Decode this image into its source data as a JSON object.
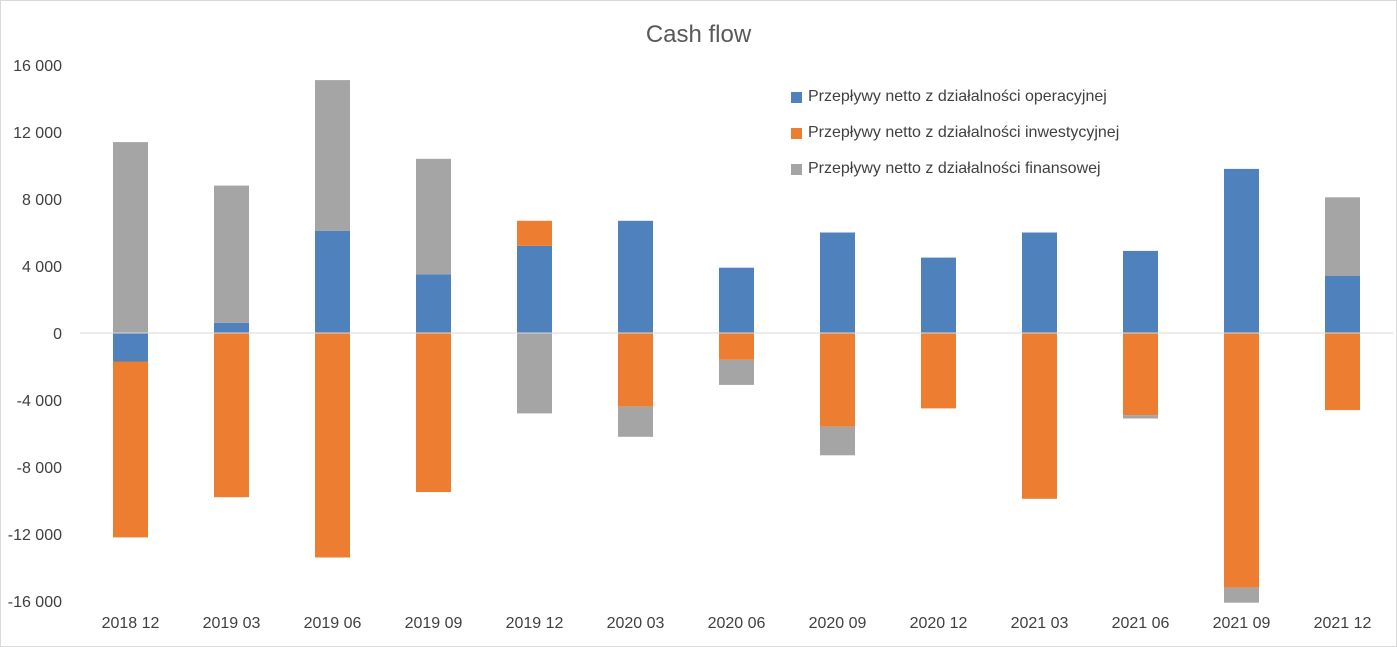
{
  "chart_data": {
    "type": "bar",
    "stacked": true,
    "title": "Cash flow",
    "xlabel": "",
    "ylabel": "",
    "ylim": [
      -16000,
      16000
    ],
    "yticks": [
      16000,
      12000,
      8000,
      4000,
      0,
      -4000,
      -8000,
      -12000,
      -16000
    ],
    "ytick_labels": [
      "16 000",
      "12 000",
      "8 000",
      "4 000",
      "0",
      "-4 000",
      "-8 000",
      "-12 000",
      "-16 000"
    ],
    "categories": [
      "2018 12",
      "2019 03",
      "2019 06",
      "2019 09",
      "2019 12",
      "2020 03",
      "2020 06",
      "2020 09",
      "2020 12",
      "2021 03",
      "2021 06",
      "2021 09",
      "2021 12"
    ],
    "series": [
      {
        "name": "Przepływy netto z działalności operacyjnej",
        "color": "#4f81bd",
        "values": [
          -1700,
          600,
          6100,
          3500,
          5200,
          6700,
          3900,
          6000,
          4500,
          6000,
          4900,
          9800,
          3400
        ]
      },
      {
        "name": "Przepływy netto z działalności inwestycyjnej",
        "color": "#ed7d31",
        "values": [
          -10500,
          -9800,
          -13400,
          -9500,
          1500,
          -4400,
          -1600,
          -5600,
          -4500,
          -9900,
          -4900,
          -15200,
          -4600
        ]
      },
      {
        "name": "Przepływy netto z działalności finansowej",
        "color": "#a5a5a5",
        "values": [
          11400,
          8200,
          9000,
          6900,
          -4800,
          -1800,
          -1500,
          -1700,
          0,
          0,
          -200,
          -900,
          4700
        ]
      }
    ],
    "legend_position": "top-right",
    "grid": false
  }
}
